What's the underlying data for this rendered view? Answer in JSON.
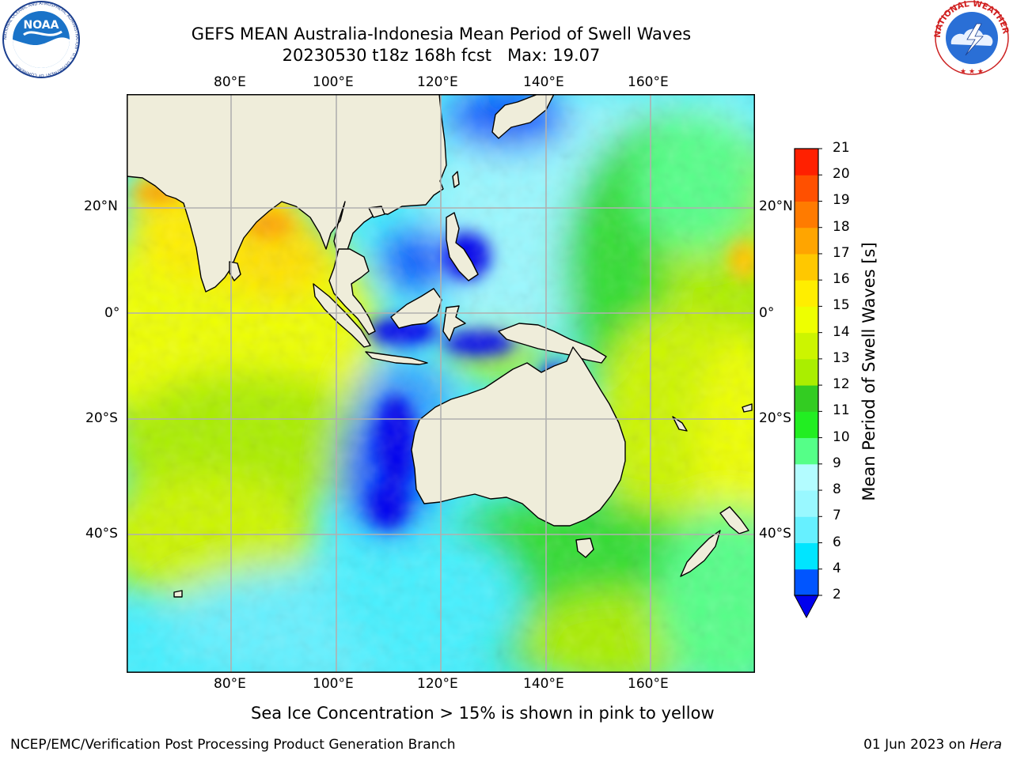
{
  "header": {
    "title_line1": "GEFS MEAN Australia-Indonesia Mean Period of Swell Waves",
    "title_line2": "20230530 t18z 168h fcst   Max: 19.07"
  },
  "logos": {
    "noaa_text": "NOAA",
    "noaa_ring": "NATIONAL OCEANIC AND ATMOSPHERIC ADMINISTRATION · U.S. DEPARTMENT OF COMMERCE",
    "nws_ring": "NATIONAL WEATHER SERVICE"
  },
  "map": {
    "lon_ticks": [
      "80°E",
      "100°E",
      "120°E",
      "140°E",
      "160°E"
    ],
    "lat_ticks": [
      "20°N",
      "0°",
      "20°S",
      "40°S"
    ],
    "colors": {
      "land": "#efedda",
      "coast": "#000000",
      "grid": "#b0b0b0"
    }
  },
  "colorbar": {
    "title": "Mean Period of Swell Waves [s]",
    "levels": [
      "2",
      "4",
      "6",
      "7",
      "8",
      "9",
      "10",
      "11",
      "12",
      "13",
      "14",
      "15",
      "16",
      "17",
      "18",
      "19",
      "20",
      "21"
    ],
    "colors": [
      "#0055ff",
      "#00e5ff",
      "#66f0ff",
      "#99f8ff",
      "#b3fcff",
      "#55ff88",
      "#22ee22",
      "#33cc22",
      "#aaee00",
      "#ccf500",
      "#eeff00",
      "#ffee00",
      "#ffc800",
      "#ffa500",
      "#ff7b00",
      "#ff5000",
      "#ff2000"
    ],
    "under_color": "#0000ee"
  },
  "notes": {
    "sea_ice": "Sea Ice Concentration > 15% is shown in pink to yellow"
  },
  "footer": {
    "left": "NCEP/EMC/Verification Post Processing Product Generation Branch",
    "date": "01 Jun 2023 on",
    "machine": "Hera"
  }
}
